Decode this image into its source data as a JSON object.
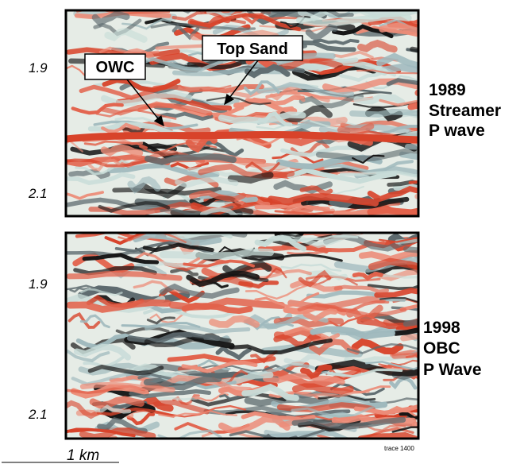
{
  "panels": [
    {
      "ticks": [
        "1.9",
        "2.1"
      ],
      "label": [
        "1989",
        "Streamer",
        "P wave"
      ],
      "callouts": [
        "OWC",
        "Top Sand"
      ]
    },
    {
      "ticks": [
        "1.9",
        "2.1"
      ],
      "label": [
        "1998",
        "OBC",
        "P Wave"
      ],
      "footnote": "trace 1400"
    }
  ],
  "scale": "1 km"
}
